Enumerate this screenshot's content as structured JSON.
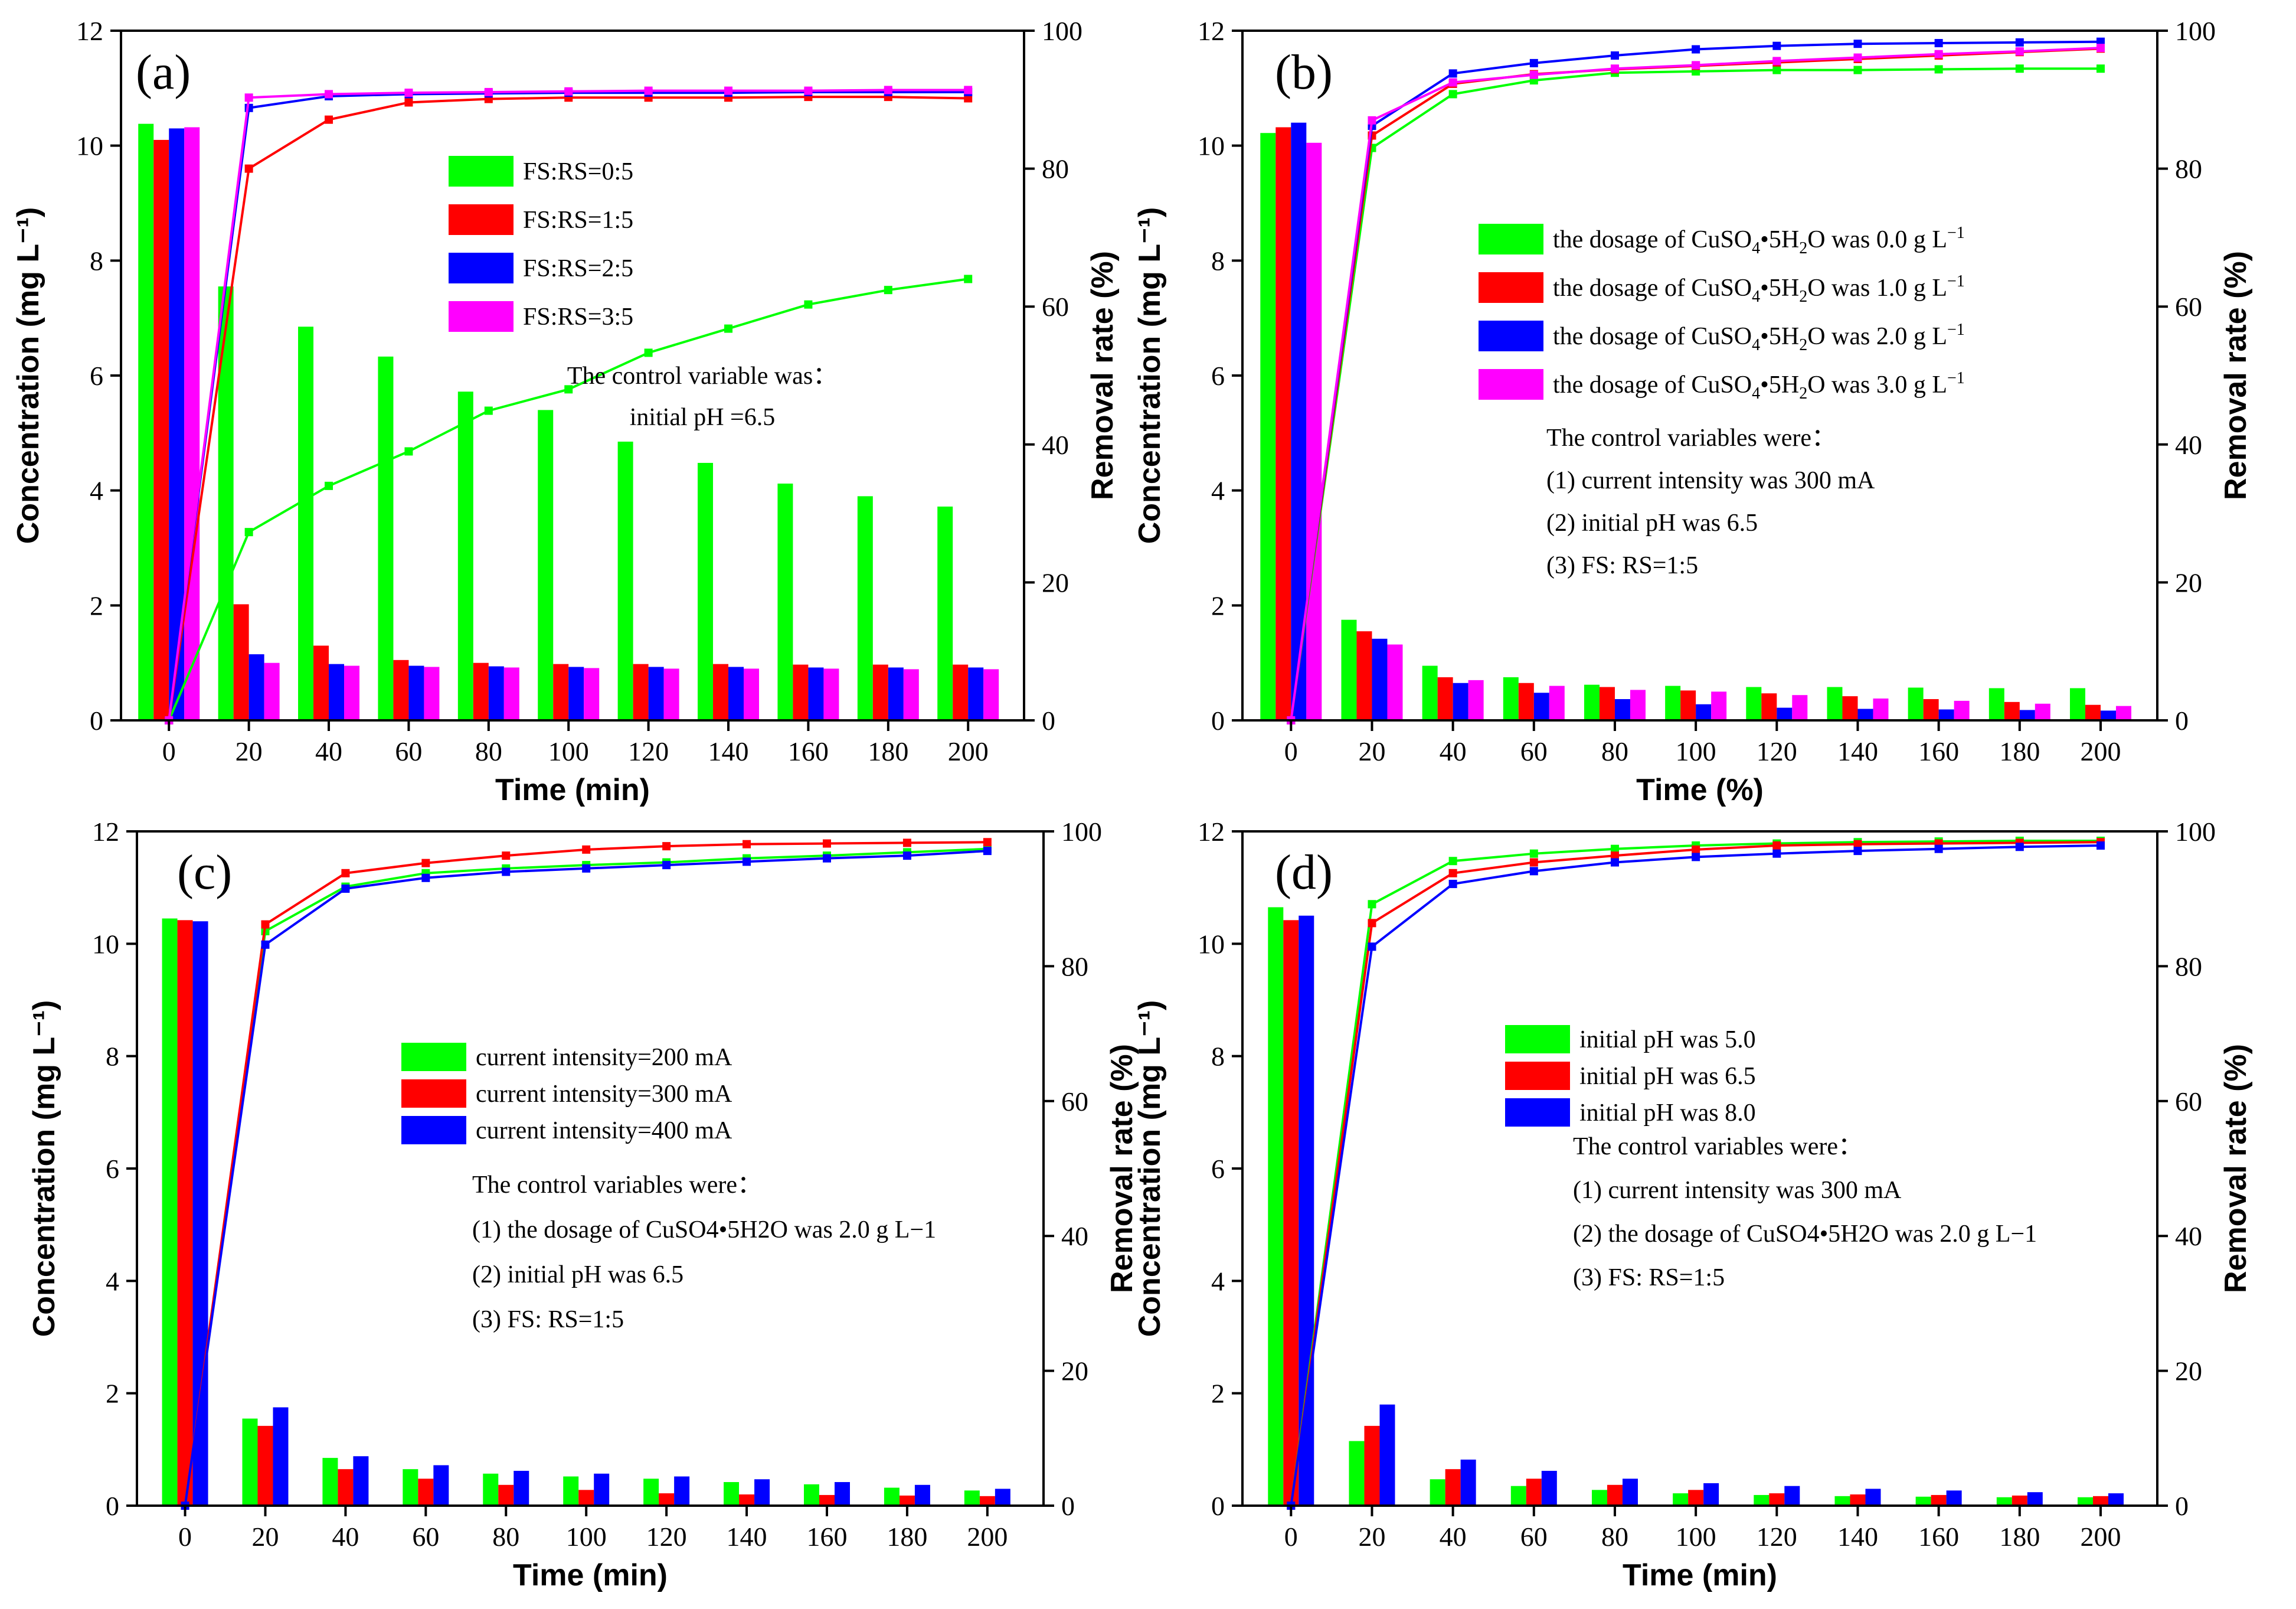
{
  "chart_data": [
    {
      "type": "bar",
      "panel_label": "(a)",
      "x": [
        0,
        20,
        40,
        60,
        80,
        100,
        120,
        140,
        160,
        180,
        200
      ],
      "xlim": [
        -12,
        214
      ],
      "xticks": [
        "0",
        "20",
        "40",
        "60",
        "80",
        "100",
        "120",
        "140",
        "160",
        "180",
        "200"
      ],
      "xlabel": "Time (min)",
      "ylabel": "Concentration (mg L⁻¹)",
      "ylim": [
        0,
        12
      ],
      "yticks": [
        "0",
        "2",
        "4",
        "6",
        "8",
        "10",
        "12"
      ],
      "y2label": "Removal rate (%)",
      "y2lim": [
        0,
        100
      ],
      "y2ticks": [
        "0",
        "20",
        "40",
        "60",
        "80",
        "100"
      ],
      "series": [
        {
          "name": "FS:RS=0:5",
          "color": "#00ff00",
          "concentration": [
            10.38,
            7.55,
            6.85,
            6.33,
            5.72,
            5.4,
            4.85,
            4.48,
            4.12,
            3.9,
            3.72
          ],
          "removal": [
            0,
            27.3,
            34.0,
            39.0,
            44.9,
            48.0,
            53.3,
            56.8,
            60.3,
            62.4,
            64.0
          ]
        },
        {
          "name": "FS:RS=1:5",
          "color": "#ff0000",
          "concentration": [
            10.1,
            2.02,
            1.3,
            1.05,
            1.0,
            0.98,
            0.98,
            0.98,
            0.97,
            0.97,
            0.97
          ],
          "removal": [
            0,
            80.0,
            87.1,
            89.6,
            90.1,
            90.3,
            90.3,
            90.3,
            90.4,
            90.4,
            90.2
          ]
        },
        {
          "name": "FS:RS=2:5",
          "color": "#0000ff",
          "concentration": [
            10.3,
            1.15,
            0.98,
            0.95,
            0.94,
            0.93,
            0.93,
            0.93,
            0.92,
            0.92,
            0.92
          ],
          "removal": [
            0,
            88.8,
            90.5,
            90.8,
            90.9,
            91.0,
            91.0,
            91.0,
            91.1,
            91.1,
            91.1
          ]
        },
        {
          "name": "FS:RS=3:5",
          "color": "#ff00ff",
          "concentration": [
            10.32,
            1.0,
            0.95,
            0.93,
            0.92,
            0.91,
            0.9,
            0.9,
            0.9,
            0.89,
            0.89
          ],
          "removal": [
            0,
            90.3,
            90.8,
            91.0,
            91.1,
            91.2,
            91.3,
            91.3,
            91.3,
            91.4,
            91.4
          ]
        }
      ],
      "annotation_lines": [
        "The control variable was：",
        "initial pH =6.5"
      ]
    },
    {
      "type": "bar",
      "panel_label": "(b)",
      "x": [
        0,
        20,
        40,
        60,
        80,
        100,
        120,
        140,
        160,
        180,
        200
      ],
      "xlim": [
        -12,
        214
      ],
      "xticks": [
        "0",
        "20",
        "40",
        "60",
        "80",
        "100",
        "120",
        "140",
        "160",
        "180",
        "200"
      ],
      "xlabel": "Time (%)",
      "ylabel": "Concentration (mg L⁻¹)",
      "ylim": [
        0,
        12
      ],
      "yticks": [
        "0",
        "2",
        "4",
        "6",
        "8",
        "10",
        "12"
      ],
      "y2label": "Removal rate (%)",
      "y2lim": [
        0,
        100
      ],
      "y2ticks": [
        "0",
        "20",
        "40",
        "60",
        "80",
        "100"
      ],
      "series": [
        {
          "name": "the dosage of CuSO4•5H2O was 0.0 g L−1",
          "legend_prefix": "the dosage of CuSO",
          "legend_suffix": " was 0.0 g L",
          "color": "#00ff00",
          "concentration": [
            10.22,
            1.75,
            0.95,
            0.75,
            0.62,
            0.6,
            0.58,
            0.58,
            0.57,
            0.56,
            0.56
          ],
          "removal": [
            0,
            83.0,
            90.8,
            92.8,
            93.9,
            94.1,
            94.3,
            94.3,
            94.4,
            94.5,
            94.5
          ]
        },
        {
          "name": "the dosage of CuSO4•5H2O was 1.0 g L−1",
          "legend_prefix": "the dosage of CuSO",
          "legend_suffix": " was 1.0 g L",
          "color": "#ff0000",
          "concentration": [
            10.32,
            1.55,
            0.75,
            0.65,
            0.58,
            0.52,
            0.47,
            0.42,
            0.37,
            0.32,
            0.27
          ],
          "removal": [
            0,
            84.8,
            92.3,
            93.7,
            94.4,
            94.9,
            95.4,
            95.9,
            96.4,
            96.9,
            97.4
          ]
        },
        {
          "name": "the dosage of CuSO4•5H2O was 2.0 g L−1",
          "legend_prefix": "the dosage of CuSO",
          "legend_suffix": " was 2.0 g L",
          "color": "#0000ff",
          "concentration": [
            10.4,
            1.42,
            0.65,
            0.48,
            0.37,
            0.28,
            0.22,
            0.2,
            0.19,
            0.18,
            0.17
          ],
          "removal": [
            0,
            86.2,
            93.8,
            95.3,
            96.4,
            97.3,
            97.8,
            98.1,
            98.2,
            98.3,
            98.4
          ]
        },
        {
          "name": "the dosage of CuSO4•5H2O was 3.0 g L−1",
          "legend_prefix": "the dosage of CuSO",
          "legend_suffix": " was 3.0 g L",
          "color": "#ff00ff",
          "concentration": [
            10.05,
            1.32,
            0.7,
            0.6,
            0.53,
            0.5,
            0.44,
            0.38,
            0.34,
            0.29,
            0.25
          ],
          "removal": [
            0,
            87.0,
            92.5,
            93.6,
            94.5,
            95.0,
            95.6,
            96.1,
            96.6,
            97.0,
            97.5
          ]
        }
      ],
      "annotation_lines": [
        "The control variables were：",
        "(1) current intensity was 300 mA",
        "(2) initial pH was 6.5",
        "(3) FS: RS=1:5"
      ]
    },
    {
      "type": "bar",
      "panel_label": "(c)",
      "x": [
        0,
        20,
        40,
        60,
        80,
        100,
        120,
        140,
        160,
        180,
        200
      ],
      "xlim": [
        -12,
        214
      ],
      "xticks": [
        "0",
        "20",
        "40",
        "60",
        "80",
        "100",
        "120",
        "140",
        "160",
        "180",
        "200"
      ],
      "xlabel": "Time (min)",
      "ylabel": "Concentration (mg L⁻¹)",
      "ylim": [
        0,
        12
      ],
      "yticks": [
        "0",
        "2",
        "4",
        "6",
        "8",
        "10",
        "12"
      ],
      "y2label": "Removal rate (%)",
      "y2lim": [
        0,
        100
      ],
      "y2ticks": [
        "0",
        "20",
        "40",
        "60",
        "80",
        "100"
      ],
      "series": [
        {
          "name": "current intensity=200 mA",
          "color": "#00ff00",
          "concentration": [
            10.45,
            1.55,
            0.85,
            0.65,
            0.57,
            0.52,
            0.48,
            0.42,
            0.38,
            0.32,
            0.27
          ],
          "removal": [
            0,
            85.2,
            91.8,
            93.8,
            94.5,
            95.0,
            95.4,
            96.0,
            96.4,
            96.9,
            97.4
          ]
        },
        {
          "name": "current intensity=300 mA",
          "color": "#ff0000",
          "concentration": [
            10.42,
            1.42,
            0.65,
            0.48,
            0.37,
            0.28,
            0.22,
            0.2,
            0.19,
            0.18,
            0.17
          ],
          "removal": [
            0,
            86.2,
            93.8,
            95.3,
            96.4,
            97.3,
            97.8,
            98.1,
            98.2,
            98.3,
            98.4
          ]
        },
        {
          "name": "current intensity=400 mA",
          "color": "#0000ff",
          "concentration": [
            10.4,
            1.75,
            0.88,
            0.72,
            0.62,
            0.57,
            0.52,
            0.47,
            0.42,
            0.37,
            0.3
          ],
          "removal": [
            0,
            83.2,
            91.5,
            93.1,
            94.0,
            94.5,
            95.0,
            95.5,
            96.0,
            96.4,
            97.1
          ]
        }
      ],
      "annotation_lines": [
        "The control variables were：",
        "(1) the dosage of CuSO4•5H2O was 2.0 g L−1",
        "(2) initial pH was 6.5",
        "(3) FS: RS=1:5"
      ]
    },
    {
      "type": "bar",
      "panel_label": "(d)",
      "x": [
        0,
        20,
        40,
        60,
        80,
        100,
        120,
        140,
        160,
        180,
        200
      ],
      "xlim": [
        -12,
        214
      ],
      "xticks": [
        "0",
        "20",
        "40",
        "60",
        "80",
        "100",
        "120",
        "140",
        "160",
        "180",
        "200"
      ],
      "xlabel": "Time (min)",
      "ylabel": "Concentration (mg L⁻¹)",
      "ylim": [
        0,
        12
      ],
      "yticks": [
        "0",
        "2",
        "4",
        "6",
        "8",
        "10",
        "12"
      ],
      "y2label": "Removal rate (%)",
      "y2lim": [
        0,
        100
      ],
      "y2ticks": [
        "0",
        "20",
        "40",
        "60",
        "80",
        "100"
      ],
      "series": [
        {
          "name": "initial pH was 5.0",
          "color": "#00ff00",
          "concentration": [
            10.65,
            1.15,
            0.47,
            0.35,
            0.28,
            0.22,
            0.19,
            0.17,
            0.16,
            0.15,
            0.15
          ],
          "removal": [
            0,
            89.2,
            95.6,
            96.7,
            97.4,
            97.9,
            98.2,
            98.4,
            98.5,
            98.6,
            98.6
          ]
        },
        {
          "name": "initial pH was 6.5",
          "color": "#ff0000",
          "concentration": [
            10.42,
            1.42,
            0.65,
            0.48,
            0.37,
            0.28,
            0.22,
            0.2,
            0.19,
            0.18,
            0.17
          ],
          "removal": [
            0,
            86.4,
            93.8,
            95.4,
            96.4,
            97.3,
            97.9,
            98.1,
            98.2,
            98.3,
            98.4
          ]
        },
        {
          "name": "initial pH was 8.0",
          "color": "#0000ff",
          "concentration": [
            10.5,
            1.8,
            0.82,
            0.62,
            0.48,
            0.4,
            0.35,
            0.3,
            0.27,
            0.24,
            0.22
          ],
          "removal": [
            0,
            82.9,
            92.2,
            94.1,
            95.4,
            96.2,
            96.7,
            97.1,
            97.4,
            97.7,
            97.9
          ]
        }
      ],
      "annotation_lines": [
        "The control variables were：",
        "(1) current intensity was 300 mA",
        "(2) the dosage of CuSO4•5H2O was 2.0 g L−1",
        "(3) FS: RS=1:5"
      ]
    }
  ]
}
